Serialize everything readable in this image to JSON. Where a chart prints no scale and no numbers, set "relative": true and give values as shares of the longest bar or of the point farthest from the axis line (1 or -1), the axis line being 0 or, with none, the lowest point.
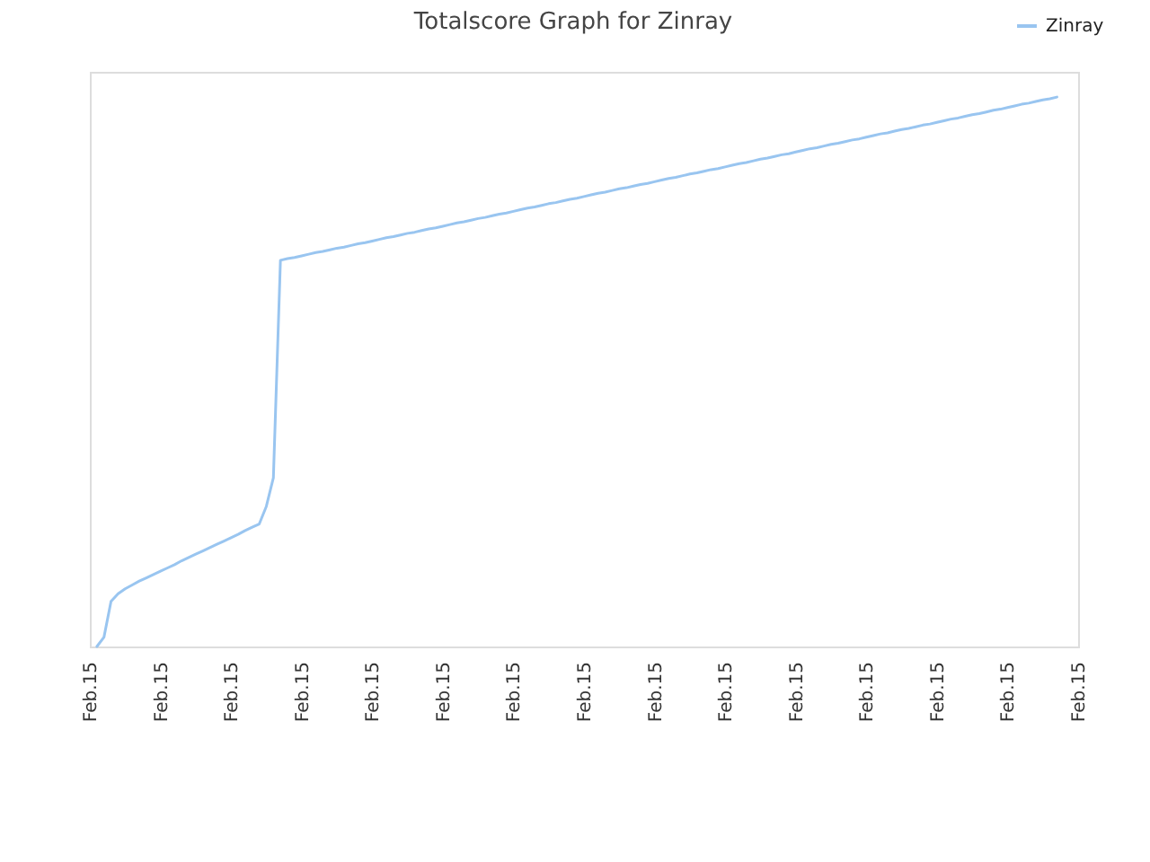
{
  "chart_data": {
    "type": "line",
    "title": "Totalscore Graph for Zinray",
    "relative": true,
    "categories": [
      "Feb.15",
      null,
      null,
      null,
      null,
      null,
      null,
      null,
      null,
      null,
      "Feb.15",
      null,
      null,
      null,
      null,
      null,
      null,
      null,
      null,
      null,
      "Feb.15",
      null,
      null,
      null,
      null,
      null,
      null,
      null,
      null,
      null,
      "Feb.15",
      null,
      null,
      null,
      null,
      null,
      null,
      null,
      null,
      null,
      "Feb.15",
      null,
      null,
      null,
      null,
      null,
      null,
      null,
      null,
      null,
      "Feb.15",
      null,
      null,
      null,
      null,
      null,
      null,
      null,
      null,
      null,
      "Feb.15",
      null,
      null,
      null,
      null,
      null,
      null,
      null,
      null,
      null,
      "Feb.15",
      null,
      null,
      null,
      null,
      null,
      null,
      null,
      null,
      null,
      "Feb.15",
      null,
      null,
      null,
      null,
      null,
      null,
      null,
      null,
      null,
      "Feb.15",
      null,
      null,
      null,
      null,
      null,
      null,
      null,
      null,
      null,
      "Feb.15",
      null,
      null,
      null,
      null,
      null,
      null,
      null,
      null,
      null,
      "Feb.15",
      null,
      null,
      null,
      null,
      null,
      null,
      null,
      null,
      null,
      "Feb.15",
      null,
      null,
      null,
      null,
      null,
      null,
      null,
      null,
      null,
      "Feb.15",
      null,
      null,
      null,
      null,
      null,
      null,
      null,
      null,
      null,
      "Feb.15"
    ],
    "series": [
      {
        "name": "Zinray",
        "color": "#99c5f0",
        "values": [
          null,
          0,
          0.017,
          0.082,
          0.096,
          0.105,
          0.112,
          0.119,
          0.125,
          0.131,
          0.137,
          0.143,
          0.149,
          0.156,
          0.162,
          0.168,
          0.174,
          0.18,
          0.186,
          0.192,
          0.198,
          0.204,
          0.211,
          0.217,
          0.223,
          0.255,
          0.307,
          0.703,
          0.706,
          0.708,
          0.711,
          0.714,
          0.717,
          0.719,
          0.722,
          0.725,
          0.727,
          0.73,
          0.733,
          0.735,
          0.738,
          0.741,
          0.744,
          0.746,
          0.749,
          0.752,
          0.754,
          0.757,
          0.76,
          0.762,
          0.765,
          0.768,
          0.771,
          0.773,
          0.776,
          0.779,
          0.781,
          0.784,
          0.787,
          0.789,
          0.792,
          0.795,
          0.798,
          0.8,
          0.803,
          0.806,
          0.808,
          0.811,
          0.814,
          0.816,
          0.819,
          0.822,
          0.825,
          0.827,
          0.83,
          0.833,
          0.835,
          0.838,
          0.841,
          0.843,
          0.846,
          0.849,
          0.852,
          0.854,
          0.857,
          0.86,
          0.862,
          0.865,
          0.868,
          0.87,
          0.873,
          0.876,
          0.879,
          0.881,
          0.884,
          0.887,
          0.889,
          0.892,
          0.895,
          0.897,
          0.9,
          0.903,
          0.906,
          0.908,
          0.911,
          0.914,
          0.916,
          0.919,
          0.922,
          0.924,
          0.927,
          0.93,
          0.933,
          0.935,
          0.938,
          0.941,
          0.943,
          0.946,
          0.949,
          0.951,
          0.954,
          0.957,
          0.96,
          0.962,
          0.965,
          0.968,
          0.97,
          0.973,
          0.976,
          0.978,
          0.981,
          0.984,
          0.987,
          0.989,
          0.992,
          0.995,
          0.997,
          1,
          null,
          null,
          null
        ]
      }
    ],
    "legend": "top right",
    "marker": "none",
    "line_style": "solid"
  }
}
